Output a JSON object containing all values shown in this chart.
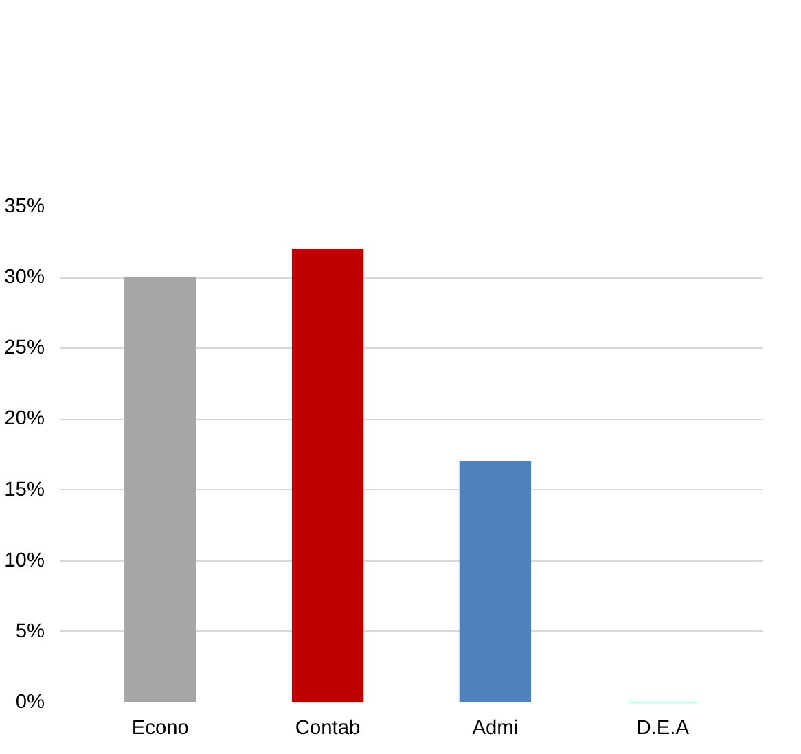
{
  "chart_data": {
    "type": "bar",
    "categories": [
      "Econo",
      "Contab",
      "Admi",
      "D.E.A"
    ],
    "values": [
      30,
      32,
      17,
      0
    ],
    "colors": [
      "#a6a6a6",
      "#c00000",
      "#4f81bd",
      "#00893c"
    ],
    "ylim": [
      0,
      35
    ],
    "yticks": [
      {
        "value": 0,
        "label": "0%"
      },
      {
        "value": 5,
        "label": "5%"
      },
      {
        "value": 10,
        "label": "10%"
      },
      {
        "value": 15,
        "label": "15%"
      },
      {
        "value": 20,
        "label": "20%"
      },
      {
        "value": 25,
        "label": "25%"
      },
      {
        "value": 30,
        "label": "30%"
      },
      {
        "value": 35,
        "label": "35%"
      }
    ],
    "grid": "y"
  }
}
